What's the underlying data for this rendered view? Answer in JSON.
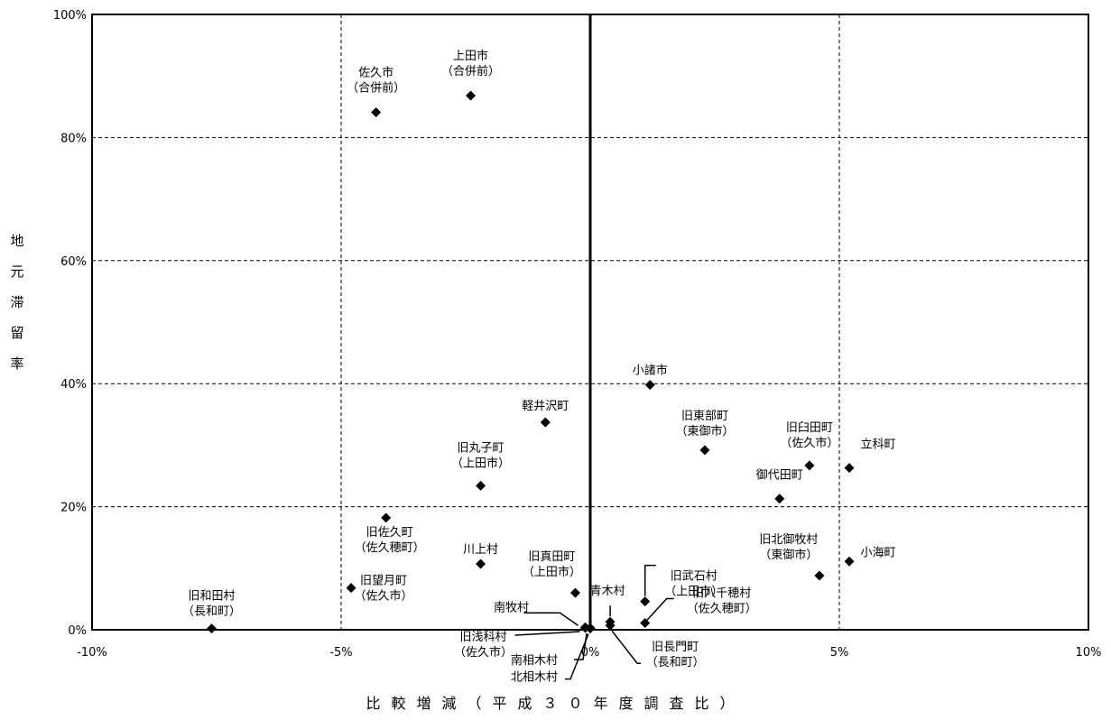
{
  "chart_data": {
    "type": "scatter",
    "title": "",
    "xlabel": "比較増減（平成３０年度調査比）",
    "ylabel": "地元滞留率",
    "xlim": [
      -10,
      10
    ],
    "ylim": [
      0,
      100
    ],
    "x_ticks": [
      -10,
      -5,
      0,
      5,
      10
    ],
    "x_tick_labels": [
      "-10%",
      "-5%",
      "0%",
      "5%",
      "10%"
    ],
    "y_ticks": [
      0,
      20,
      40,
      60,
      80,
      100
    ],
    "y_tick_labels": [
      "0%",
      "20%",
      "40%",
      "60%",
      "80%",
      "100%"
    ],
    "grid": true,
    "marker": "diamond",
    "marker_color": "#000000",
    "points": [
      {
        "lines": [
          "佐久市",
          "（合併前）"
        ],
        "x": -4.3,
        "y": 84.1
      },
      {
        "lines": [
          "上田市",
          "（合併前）"
        ],
        "x": -2.4,
        "y": 86.8
      },
      {
        "lines": [
          "小諸市"
        ],
        "x": 1.2,
        "y": 39.8
      },
      {
        "lines": [
          "軽井沢町"
        ],
        "x": -0.9,
        "y": 33.7
      },
      {
        "lines": [
          "旧東部町",
          "（東御市）"
        ],
        "x": 2.3,
        "y": 29.2
      },
      {
        "lines": [
          "旧臼田町",
          "（佐久市）"
        ],
        "x": 4.4,
        "y": 26.7
      },
      {
        "lines": [
          "立科町"
        ],
        "x": 5.2,
        "y": 26.3
      },
      {
        "lines": [
          "旧丸子町",
          "（上田市）"
        ],
        "x": -2.2,
        "y": 23.4
      },
      {
        "lines": [
          "御代田町"
        ],
        "x": 3.8,
        "y": 21.3
      },
      {
        "lines": [
          "旧佐久町",
          "（佐久穂町）"
        ],
        "x": -4.1,
        "y": 18.2
      },
      {
        "lines": [
          "小海町"
        ],
        "x": 5.2,
        "y": 11.1
      },
      {
        "lines": [
          "川上村"
        ],
        "x": -2.2,
        "y": 10.7
      },
      {
        "lines": [
          "旧北御牧村",
          "（東御市）"
        ],
        "x": 4.6,
        "y": 8.8
      },
      {
        "lines": [
          "旧望月町",
          "（佐久市）"
        ],
        "x": -4.8,
        "y": 6.8
      },
      {
        "lines": [
          "旧真田町",
          "（上田市）"
        ],
        "x": -0.3,
        "y": 6.0
      },
      {
        "lines": [
          "旧武石村",
          "（上田市）"
        ],
        "x": 1.1,
        "y": 4.6
      },
      {
        "lines": [
          "青木村"
        ],
        "x": 0.4,
        "y": 1.3
      },
      {
        "lines": [
          "旧八千穂村",
          "（佐久穂町）"
        ],
        "x": 1.1,
        "y": 1.1
      },
      {
        "lines": [
          "旧和田村",
          "（長和町）"
        ],
        "x": -7.6,
        "y": 0.2
      },
      {
        "lines": [
          "南牧村"
        ],
        "x": -0.1,
        "y": 0.4
      },
      {
        "lines": [
          "旧浅科村",
          "（佐久市）"
        ],
        "x": -0.1,
        "y": 0.3
      },
      {
        "lines": [
          "南相木村"
        ],
        "x": 0.0,
        "y": 0.3
      },
      {
        "lines": [
          "北相木村"
        ],
        "x": 0.0,
        "y": 0.2
      },
      {
        "lines": [
          "旧長門町",
          "（長和町）"
        ],
        "x": 0.4,
        "y": 0.7
      }
    ]
  }
}
